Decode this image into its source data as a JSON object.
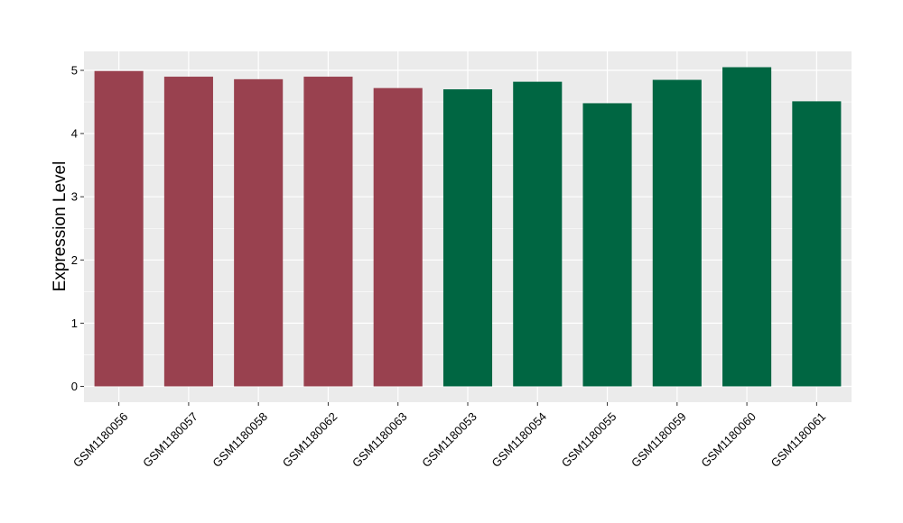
{
  "chart_data": {
    "type": "bar",
    "title": "",
    "xlabel": "",
    "ylabel": "Expression Level",
    "ylim": [
      -0.25,
      5.3
    ],
    "yticks": [
      0,
      1,
      2,
      3,
      4,
      5
    ],
    "grid": true,
    "legend": "none",
    "categories": [
      "GSM1180056",
      "GSM1180057",
      "GSM1180058",
      "GSM1180062",
      "GSM1180063",
      "GSM1180053",
      "GSM1180054",
      "GSM1180055",
      "GSM1180059",
      "GSM1180060",
      "GSM1180061"
    ],
    "values": [
      4.99,
      4.9,
      4.86,
      4.9,
      4.72,
      4.7,
      4.82,
      4.48,
      4.85,
      5.05,
      4.51
    ],
    "group_of_bar": [
      0,
      0,
      0,
      0,
      0,
      1,
      1,
      1,
      1,
      1,
      1
    ],
    "colors": {
      "group_colors": [
        "#99414f",
        "#006642"
      ],
      "panel_background": "#ebebeb",
      "grid": "#ffffff",
      "tick": "#333333"
    }
  }
}
